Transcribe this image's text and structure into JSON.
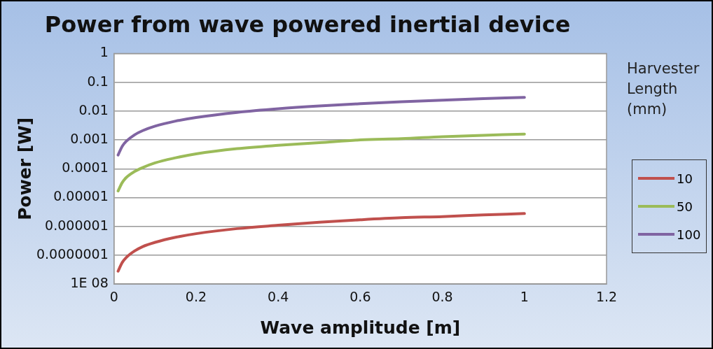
{
  "chart_data": {
    "type": "line",
    "title": "Power from wave powered inertial device",
    "xlabel": "Wave amplitude [m]",
    "ylabel": "Power [W]",
    "legend_title": "Harvester Length (mm)",
    "x": [
      0.01,
      0.02,
      0.03,
      0.05,
      0.07,
      0.1,
      0.15,
      0.2,
      0.3,
      0.4,
      0.5,
      0.6,
      0.7,
      0.8,
      0.9,
      1
    ],
    "series": [
      {
        "name": "10",
        "color": "#c0504d",
        "values": [
          2.8e-08,
          5.6e-08,
          8.4e-08,
          1.4e-07,
          2e-07,
          2.8e-07,
          4.2e-07,
          5.6e-07,
          8.4e-07,
          1.1e-06,
          1.4e-06,
          1.7e-06,
          2e-06,
          2.2e-06,
          2.5e-06,
          2.8e-06
        ]
      },
      {
        "name": "50",
        "color": "#9bbb59",
        "values": [
          1.7e-05,
          3.3e-05,
          5e-05,
          8e-05,
          0.00011,
          0.00016,
          0.00024,
          0.00033,
          0.0005,
          0.00065,
          0.0008,
          0.001,
          0.0011,
          0.0013,
          0.00145,
          0.0016
        ]
      },
      {
        "name": "100",
        "color": "#8064a2",
        "values": [
          0.0003,
          0.0006,
          0.0009,
          0.0015,
          0.0021,
          0.003,
          0.0045,
          0.006,
          0.009,
          0.012,
          0.015,
          0.018,
          0.021,
          0.024,
          0.027,
          0.03
        ]
      }
    ],
    "xlim": [
      0,
      1.2
    ],
    "xticks": [
      0,
      0.2,
      0.4,
      0.6,
      0.8,
      1,
      1.2
    ],
    "ylim": [
      1e-08,
      1
    ],
    "yticks": [
      {
        "value": 1e-08,
        "label": "1E 08"
      },
      {
        "value": 1e-07,
        "label": "0.0000001"
      },
      {
        "value": 1e-06,
        "label": "0.000001"
      },
      {
        "value": 1e-05,
        "label": "0.00001"
      },
      {
        "value": 0.0001,
        "label": "0.0001"
      },
      {
        "value": 0.001,
        "label": "0.001"
      },
      {
        "value": 0.01,
        "label": "0.01"
      },
      {
        "value": 0.1,
        "label": "0.1"
      },
      {
        "value": 1,
        "label": "1"
      }
    ],
    "log": "y",
    "grid": "y",
    "legend": "right",
    "marker": "none",
    "line_style": "solid"
  }
}
